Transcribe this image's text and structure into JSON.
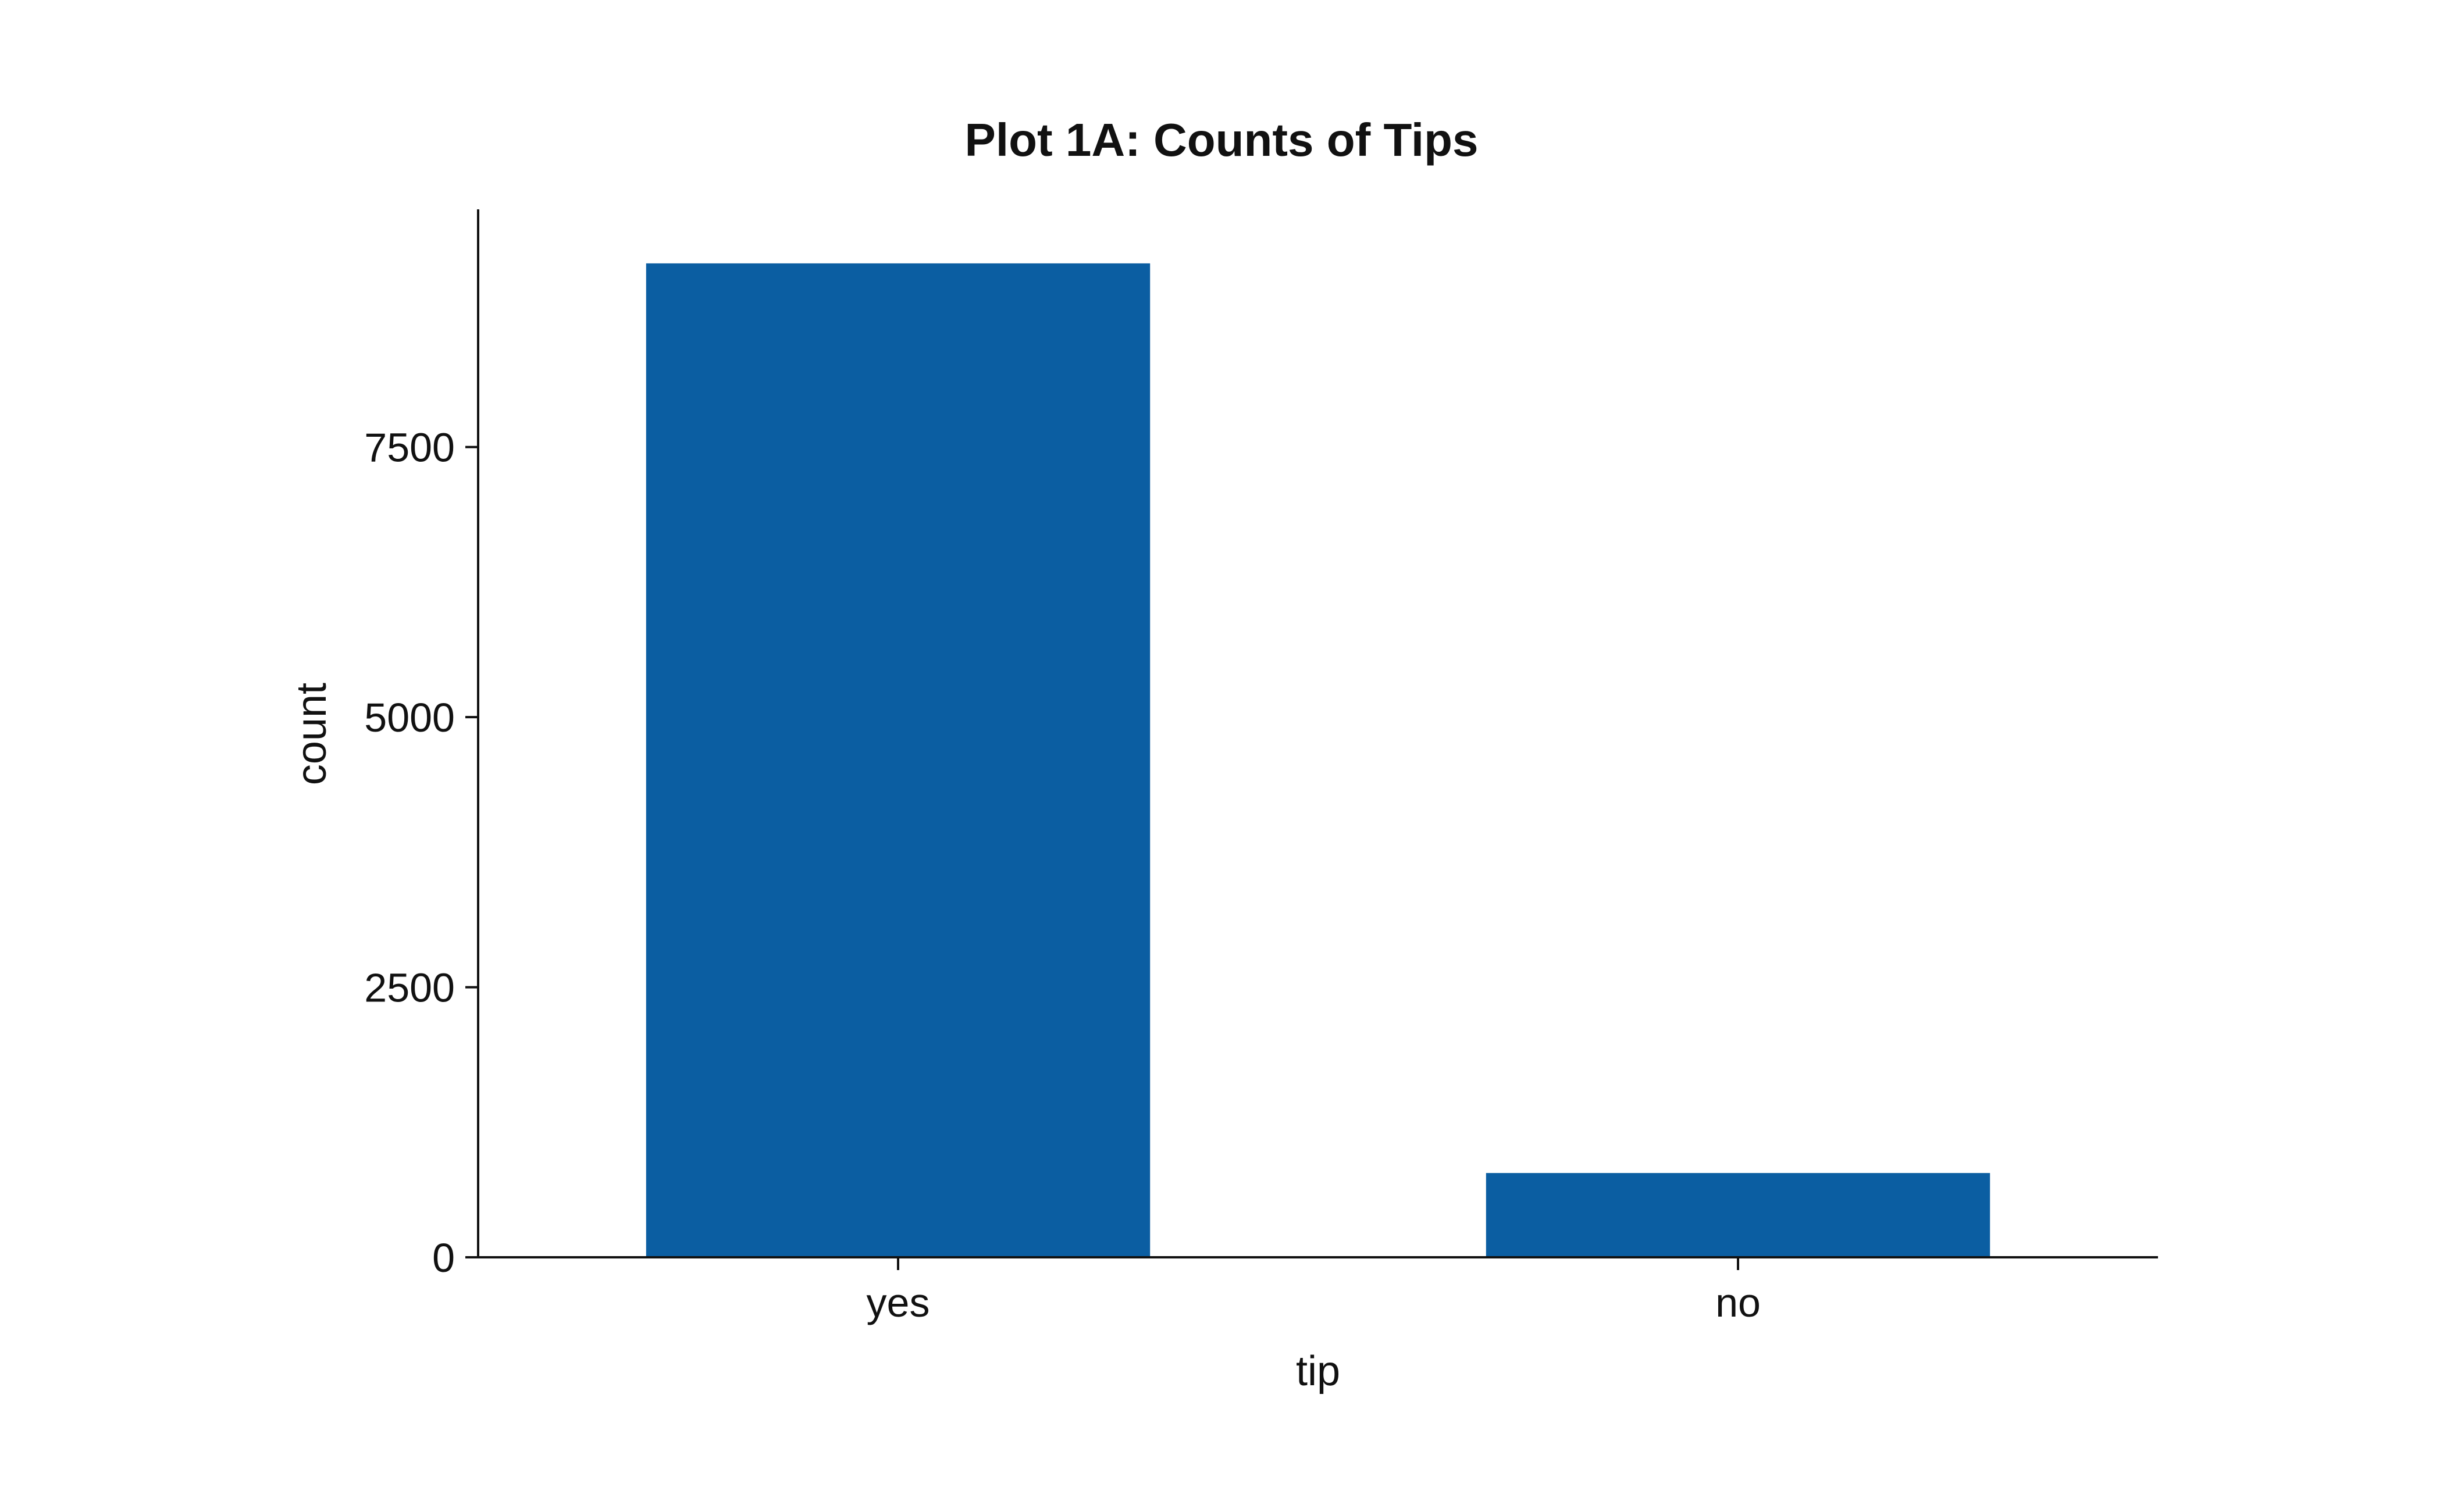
{
  "chart_data": {
    "type": "bar",
    "title": "Plot 1A: Counts of Tips",
    "xlabel": "tip",
    "ylabel": "count",
    "categories": [
      "yes",
      "no"
    ],
    "values": [
      9200,
      780
    ],
    "ylim": [
      0,
      9700
    ],
    "yticks": [
      0,
      2500,
      5000,
      7500
    ],
    "ytick_labels": [
      "0",
      "2500",
      "5000",
      "7500"
    ],
    "grid": false,
    "legend": "none",
    "bar_color": "#0b5ea2",
    "axis_color": "#111111"
  }
}
